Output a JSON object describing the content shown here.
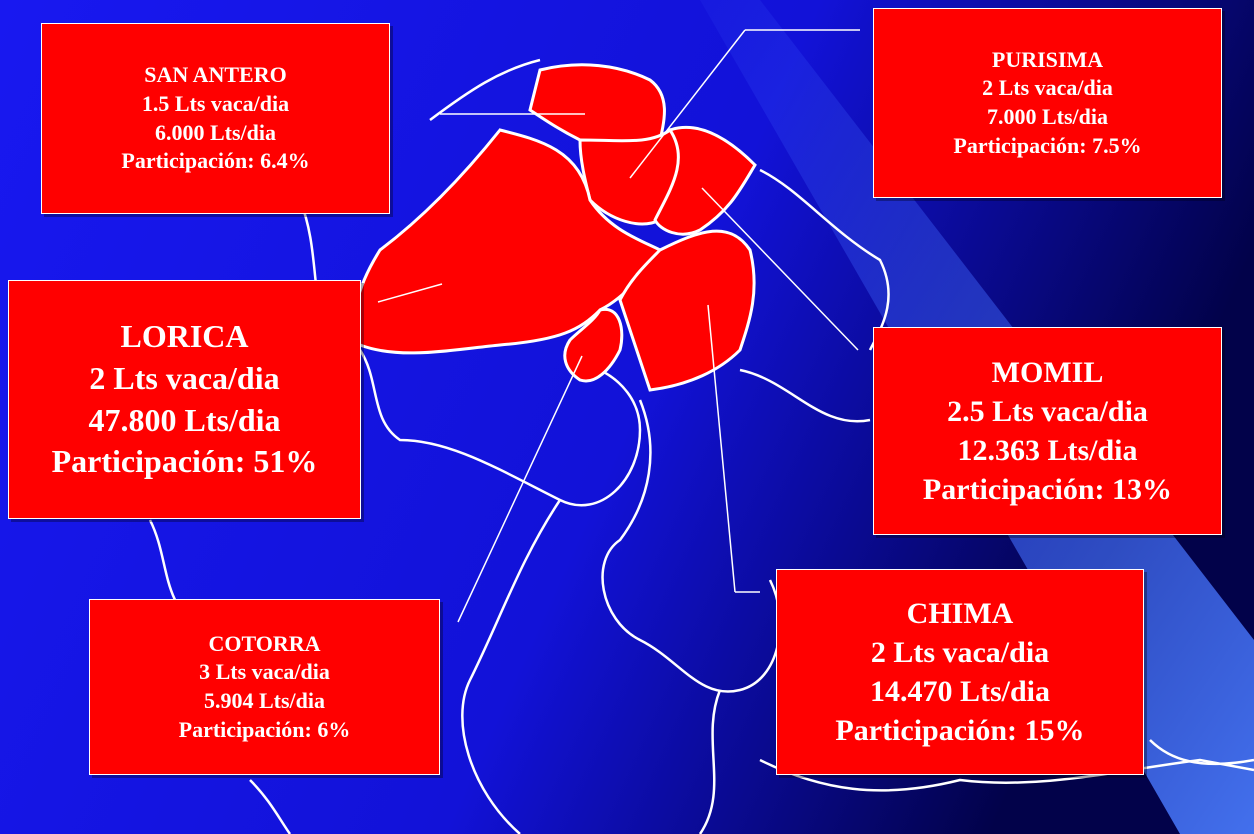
{
  "labels": [
    {
      "name": "SAN ANTERO",
      "lines": [
        "1.5 Lts vaca/dia",
        "6.000 Lts/dia",
        "Participación: 6.4%"
      ]
    },
    {
      "name": "PURISIMA",
      "lines": [
        "2 Lts vaca/dia",
        "7.000 Lts/dia",
        "Participación: 7.5%"
      ]
    },
    {
      "name": "LORICA",
      "lines": [
        "2 Lts vaca/dia",
        "47.800 Lts/dia",
        "Participación: 51%"
      ]
    },
    {
      "name": "MOMIL",
      "lines": [
        "2.5 Lts vaca/dia",
        "12.363 Lts/dia",
        "Participación: 13%"
      ]
    },
    {
      "name": "COTORRA",
      "lines": [
        "3 Lts vaca/dia",
        "5.904 Lts/dia",
        "Participación: 6%"
      ]
    },
    {
      "name": "CHIMA",
      "lines": [
        "2 Lts vaca/dia",
        "14.470 Lts/dia",
        "Participación: 15%"
      ]
    }
  ]
}
